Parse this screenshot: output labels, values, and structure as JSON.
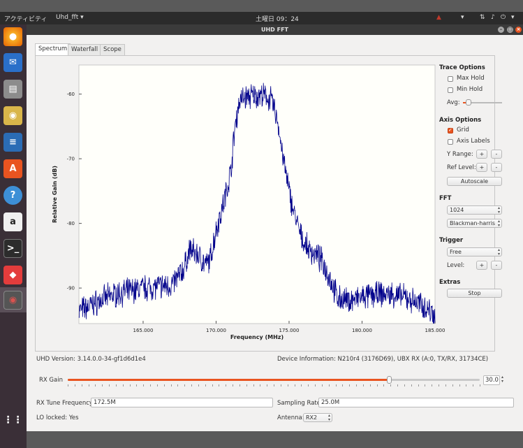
{
  "topbar": {
    "activities": "アクティビティ",
    "app_menu": "Uhd_fft ▾",
    "clock": "土曜日 09：24"
  },
  "window": {
    "title": "UHD FFT"
  },
  "tabs": [
    {
      "label": "Spectrum"
    },
    {
      "label": "Waterfall"
    },
    {
      "label": "Scope"
    }
  ],
  "chart_data": {
    "type": "line",
    "xlabel": "Frequency (MHz)",
    "ylabel": "Relative Gain (dB)",
    "xlim": [
      160.6,
      185.0
    ],
    "ylim": [
      -95.5,
      -55.5
    ],
    "x_ticks": [
      "165.000",
      "170.000",
      "175.000",
      "180.000",
      "185.000"
    ],
    "x_tick_values": [
      165,
      170,
      175,
      180,
      185
    ],
    "y_ticks": [
      "-60",
      "-70",
      "-80",
      "-90"
    ],
    "y_tick_values": [
      -60,
      -70,
      -80,
      -90
    ],
    "grid": false,
    "series": [
      {
        "color": "#00008b",
        "x": [
          160.6,
          161.2,
          162.0,
          163.0,
          164.0,
          165.0,
          166.0,
          167.0,
          167.8,
          168.2,
          168.8,
          169.3,
          169.6,
          170.0,
          170.5,
          171.0,
          171.3,
          171.6,
          172.0,
          172.5,
          173.0,
          173.5,
          173.8,
          174.2,
          174.6,
          175.0,
          175.3,
          175.8,
          176.3,
          176.9,
          177.3,
          177.8,
          178.3,
          179.0,
          180.0,
          181.0,
          182.0,
          183.0,
          184.0,
          185.0
        ],
        "y": [
          -93.5,
          -93.0,
          -92.0,
          -91.0,
          -90.5,
          -90.0,
          -89.8,
          -89.5,
          -87.0,
          -84.0,
          -85.0,
          -86.5,
          -85.5,
          -81.0,
          -77.0,
          -72.0,
          -65.0,
          -61.0,
          -60.5,
          -60.3,
          -60.2,
          -60.5,
          -61.0,
          -64.0,
          -70.0,
          -75.0,
          -78.0,
          -82.0,
          -84.0,
          -85.0,
          -86.0,
          -88.5,
          -91.5,
          -92.0,
          -91.5,
          -91.0,
          -91.0,
          -91.5,
          -92.5,
          -94.0
        ]
      }
    ]
  },
  "trace_options": {
    "title": "Trace Options",
    "max_hold": "Max Hold",
    "min_hold": "Min Hold",
    "avg_label": "Avg:"
  },
  "axis_options": {
    "title": "Axis Options",
    "grid": "Grid",
    "axis_labels": "Axis Labels",
    "y_range": "Y Range:",
    "ref_level": "Ref Level:",
    "plus": "+",
    "minus": "-",
    "autoscale": "Autoscale"
  },
  "fft": {
    "title": "FFT",
    "size": "1024",
    "window": "Blackman-harris"
  },
  "trigger": {
    "title": "Trigger",
    "mode": "Free",
    "level_label": "Level:",
    "plus": "+",
    "minus": "-"
  },
  "extras": {
    "title": "Extras",
    "stop": "Stop"
  },
  "info": {
    "uhd_version": "UHD Version: 3.14.0.0-34-gf1d6d1e4",
    "device_info": "Device Information: N210r4 (3176D69), UBX RX (A:0, TX/RX, 31734CE)"
  },
  "rx_gain": {
    "label": "RX Gain",
    "value": "30.0",
    "fraction": 0.78
  },
  "tune": {
    "freq_label": "RX Tune Frequency:",
    "freq_value": "172.5M",
    "rate_label": "Sampling Rate:",
    "rate_value": "25.0M",
    "lo_locked": "LO locked: Yes",
    "antenna_label": "Antenna:",
    "antenna_value": "RX2"
  },
  "dock_icons": [
    "firefox-icon",
    "thunderbird-icon",
    "files-icon",
    "rhythmbox-icon",
    "writer-icon",
    "software-icon",
    "help-icon",
    "amazon-icon",
    "terminal-icon",
    "git-icon",
    "uhd-fft-icon",
    "apps-grid-icon"
  ]
}
